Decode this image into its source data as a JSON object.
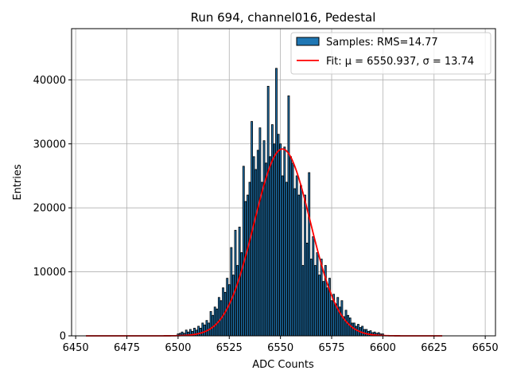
{
  "chart_data": {
    "type": "bar",
    "title": "Run 694, channel016, Pedestal",
    "xlabel": "ADC Counts",
    "ylabel": "Entries",
    "xlim": [
      6448,
      6655
    ],
    "ylim": [
      0,
      48000
    ],
    "xticks": [
      6450,
      6475,
      6500,
      6525,
      6550,
      6575,
      6600,
      6625,
      6650
    ],
    "yticks": [
      0,
      10000,
      20000,
      30000,
      40000
    ],
    "grid": true,
    "legend_placement": "upper-right",
    "series": [
      {
        "name": "Samples: RMS=14.77",
        "kind": "histogram",
        "color": "#1f77b4",
        "edgecolor": "#000000",
        "x": [
          6500,
          6501,
          6502,
          6503,
          6504,
          6505,
          6506,
          6507,
          6508,
          6509,
          6510,
          6511,
          6512,
          6513,
          6514,
          6515,
          6516,
          6517,
          6518,
          6519,
          6520,
          6521,
          6522,
          6523,
          6524,
          6525,
          6526,
          6527,
          6528,
          6529,
          6530,
          6531,
          6532,
          6533,
          6534,
          6535,
          6536,
          6537,
          6538,
          6539,
          6540,
          6541,
          6542,
          6543,
          6544,
          6545,
          6546,
          6547,
          6548,
          6549,
          6550,
          6551,
          6552,
          6553,
          6554,
          6555,
          6556,
          6557,
          6558,
          6559,
          6560,
          6561,
          6562,
          6563,
          6564,
          6565,
          6566,
          6567,
          6568,
          6569,
          6570,
          6571,
          6572,
          6573,
          6574,
          6575,
          6576,
          6577,
          6578,
          6579,
          6580,
          6581,
          6582,
          6583,
          6584,
          6585,
          6586,
          6587,
          6588,
          6589,
          6590,
          6591,
          6592,
          6593,
          6594,
          6595,
          6596,
          6597,
          6598,
          6599,
          6600
        ],
        "values": [
          300,
          400,
          600,
          400,
          900,
          600,
          1000,
          700,
          1200,
          900,
          1500,
          1200,
          2000,
          1700,
          2400,
          2000,
          3800,
          3200,
          4500,
          4200,
          6000,
          5500,
          7500,
          6800,
          9000,
          8000,
          13800,
          9500,
          16500,
          11000,
          17000,
          13000,
          26500,
          21000,
          22000,
          24000,
          33500,
          28000,
          26000,
          29000,
          32500,
          24000,
          30500,
          27000,
          39000,
          28000,
          33000,
          30000,
          41800,
          31500,
          30000,
          25000,
          29500,
          24000,
          37500,
          28000,
          27000,
          23000,
          25000,
          22000,
          23500,
          11000,
          22000,
          14500,
          25500,
          12000,
          15500,
          11000,
          13000,
          9500,
          12000,
          8500,
          11000,
          7500,
          9000,
          5500,
          6500,
          5000,
          6000,
          4500,
          5500,
          3000,
          4000,
          3200,
          2800,
          2000,
          2000,
          1500,
          1800,
          1300,
          1500,
          1000,
          1000,
          700,
          800,
          500,
          600,
          400,
          500,
          300,
          300
        ]
      },
      {
        "name": "Fit: μ = 6550.937, σ = 13.74",
        "kind": "gaussian-fit",
        "color": "#ff0000",
        "mu": 6550.937,
        "sigma": 13.74,
        "amplitude": 29200,
        "x_range": [
          6455,
          6629
        ]
      }
    ]
  }
}
